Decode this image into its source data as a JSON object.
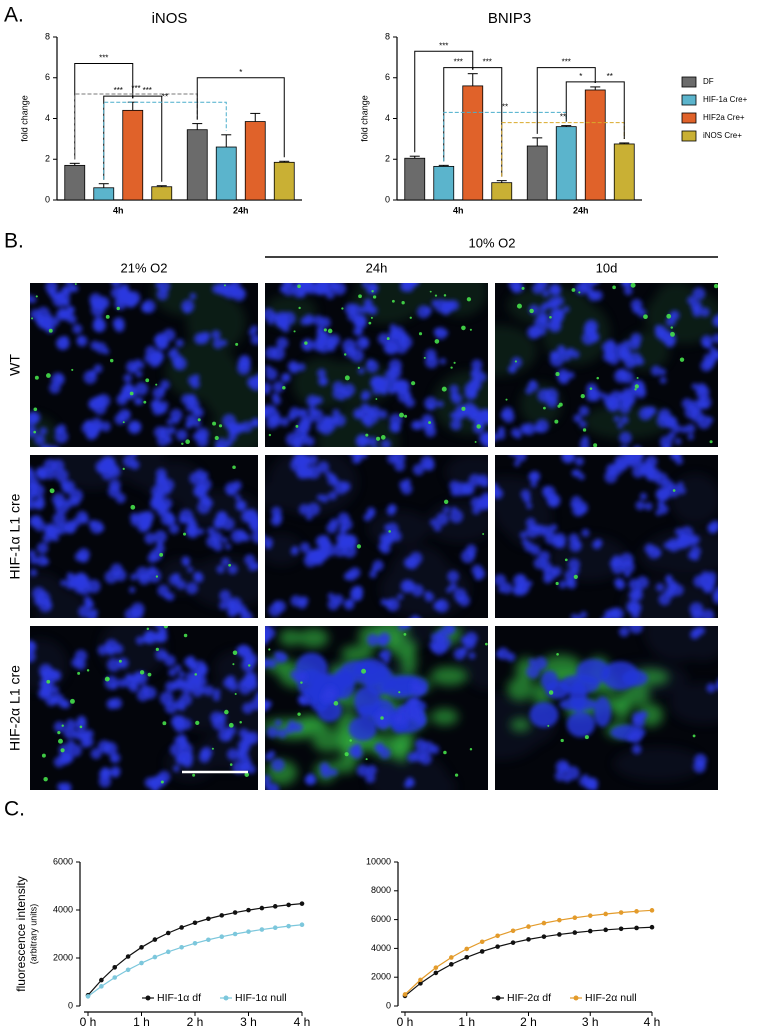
{
  "panel_labels": [
    "A.",
    "B.",
    "C."
  ],
  "chart_data": [
    {
      "type": "bar",
      "title": "iNOS",
      "ylabel": "fold change",
      "categories": [
        "4h",
        "24h"
      ],
      "ylim": [
        0,
        8
      ],
      "yticks": [
        0,
        2,
        4,
        6,
        8
      ],
      "series": [
        {
          "color": "#6b6b6b",
          "values": [
            1.7,
            3.45
          ],
          "errors": [
            0.1,
            0.3
          ]
        },
        {
          "color": "#5bb4cc",
          "values": [
            0.6,
            2.6
          ],
          "errors": [
            0.2,
            0.6
          ]
        },
        {
          "color": "#e0622a",
          "values": [
            4.4,
            3.85
          ],
          "errors": [
            0.4,
            0.4
          ]
        },
        {
          "color": "#c9b034",
          "values": [
            0.65,
            1.85
          ],
          "errors": [
            0.05,
            0.05
          ]
        }
      ],
      "annotations": [
        "***",
        "***",
        "***",
        "***",
        "**",
        "*"
      ]
    },
    {
      "type": "bar",
      "title": "BNIP3",
      "ylabel": "fold change",
      "categories": [
        "4h",
        "24h"
      ],
      "ylim": [
        0,
        8
      ],
      "yticks": [
        0,
        2,
        4,
        6,
        8
      ],
      "legend": "right",
      "series": [
        {
          "name": "DF",
          "color": "#6b6b6b",
          "values": [
            2.05,
            2.65
          ],
          "errors": [
            0.1,
            0.4
          ]
        },
        {
          "name": "HIF-1a Cre+",
          "color": "#5bb4cc",
          "values": [
            1.65,
            3.6
          ],
          "errors": [
            0.05,
            0.05
          ]
        },
        {
          "name": "HIF2a Cre+",
          "color": "#e0622a",
          "values": [
            5.6,
            5.4
          ],
          "errors": [
            0.6,
            0.15
          ]
        },
        {
          "name": "iNOS Cre+",
          "color": "#c9b034",
          "values": [
            0.85,
            2.75
          ],
          "errors": [
            0.1,
            0.05
          ]
        }
      ],
      "annotations": [
        "***",
        "***",
        "***",
        "**",
        "**",
        "***",
        "*",
        "**"
      ]
    },
    {
      "type": "line",
      "ylabel": "fluorescence intensity",
      "ylabel_sub": "(arbitrary units)",
      "x": [
        0,
        0.25,
        0.5,
        0.75,
        1,
        1.25,
        1.5,
        1.75,
        2,
        2.25,
        2.5,
        2.75,
        3,
        3.25,
        3.5,
        3.75,
        4
      ],
      "xlim": [
        0,
        4
      ],
      "xticks": [
        {
          "value": 0,
          "label": "0 h"
        },
        {
          "value": 1,
          "label": "1 h"
        },
        {
          "value": 2,
          "label": "2 h"
        },
        {
          "value": 3,
          "label": "3 h"
        },
        {
          "value": 4,
          "label": "4 h"
        }
      ],
      "ylim": [
        0,
        6000
      ],
      "yticks": [
        0,
        2000,
        4000,
        6000
      ],
      "legend": "lower right",
      "series": [
        {
          "name": "HIF-1α df",
          "color": "#111111",
          "values": [
            450,
            1079,
            1612,
            2063,
            2445,
            2768,
            3042,
            3273,
            3469,
            3635,
            3776,
            3894,
            3995,
            4080,
            4152,
            4213,
            4265
          ]
        },
        {
          "name": "HIF-1α null",
          "color": "#7cc7dc",
          "values": [
            400,
            819,
            1187,
            1509,
            1791,
            2039,
            2256,
            2446,
            2613,
            2760,
            2888,
            3000,
            3099,
            3185,
            3261,
            3327,
            3386
          ]
        }
      ]
    },
    {
      "type": "line",
      "x": [
        0,
        0.25,
        0.5,
        0.75,
        1,
        1.25,
        1.5,
        1.75,
        2,
        2.25,
        2.5,
        2.75,
        3,
        3.25,
        3.5,
        3.75,
        4
      ],
      "xlim": [
        0,
        4
      ],
      "xticks": [
        {
          "value": 0,
          "label": "0 h"
        },
        {
          "value": 1,
          "label": "1 h"
        },
        {
          "value": 2,
          "label": "2 h"
        },
        {
          "value": 3,
          "label": "3 h"
        },
        {
          "value": 4,
          "label": "4 h"
        }
      ],
      "ylim": [
        0,
        10000
      ],
      "yticks": [
        0,
        2000,
        4000,
        6000,
        8000,
        10000
      ],
      "legend": "lower right",
      "series": [
        {
          "name": "HIF-2α df",
          "color": "#111111",
          "values": [
            700,
            1575,
            2297,
            2892,
            3383,
            3789,
            4123,
            4399,
            4627,
            4814,
            4969,
            5097,
            5203,
            5290,
            5362,
            5421,
            5470
          ]
        },
        {
          "name": "HIF-2α null",
          "color": "#e39b2b",
          "values": [
            800,
            1814,
            2662,
            3371,
            3965,
            4461,
            4877,
            5224,
            5514,
            5757,
            5960,
            6130,
            6273,
            6391,
            6491,
            6574,
            6644
          ]
        }
      ]
    }
  ],
  "microscopy": {
    "group_label": "10% O2",
    "columns": [
      "21% O2",
      "24h",
      "10d"
    ],
    "rows": [
      {
        "label": "WT",
        "color": "#222222"
      },
      {
        "label": "HIF-1α L1 cre",
        "color": "#3b7fc8"
      },
      {
        "label": "HIF-2α L1 cre",
        "color": "#e0622a"
      }
    ]
  }
}
